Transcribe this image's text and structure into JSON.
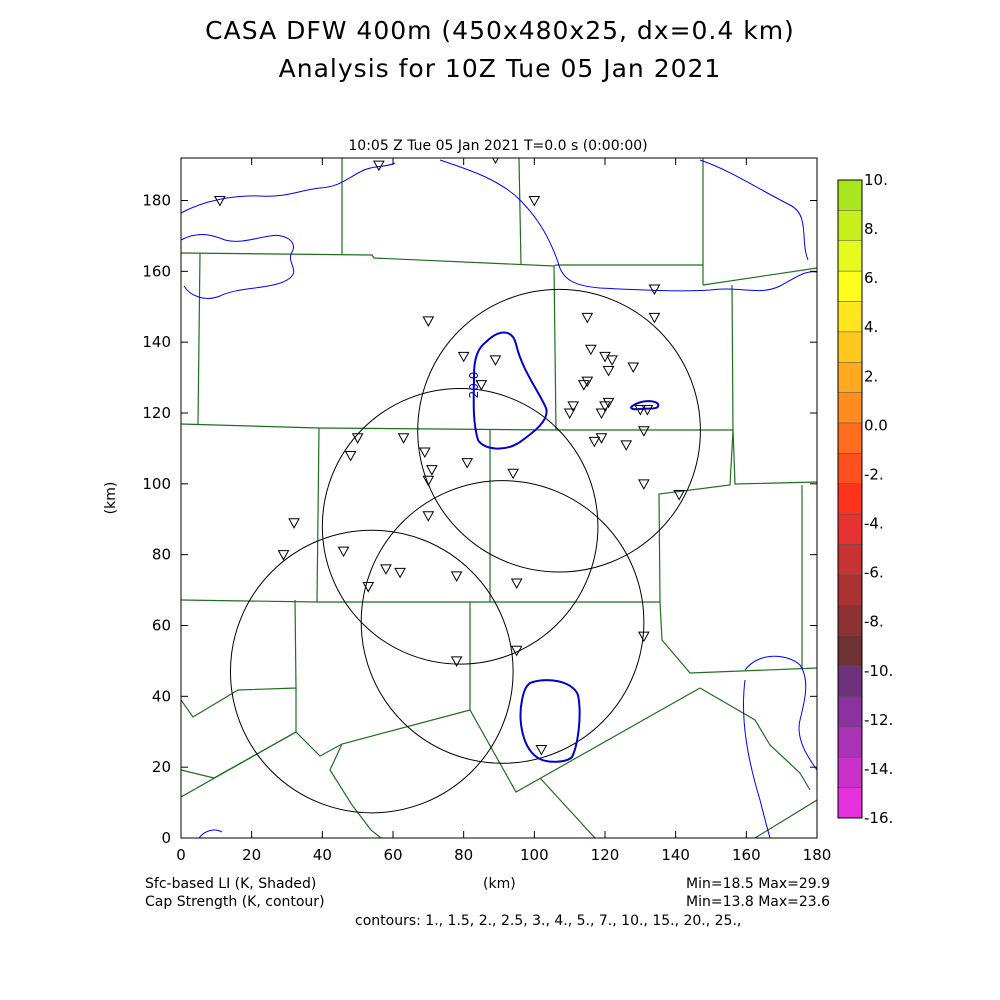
{
  "header": {
    "title_line1": "CASA DFW 400m (450x480x25, dx=0.4 km)",
    "title_line2": "Analysis for 10Z Tue 05 Jan 2021",
    "subtitle": "10:05 Z Tue 05 Jan 2021   T=0.0 s (0:00:00)"
  },
  "axes": {
    "xlabel": "(km)",
    "ylabel": "(km)",
    "xlim": [
      0,
      180
    ],
    "ylim": [
      0,
      192
    ],
    "xticks": [
      0,
      20,
      40,
      60,
      80,
      100,
      120,
      140,
      160,
      180
    ],
    "yticks": [
      0,
      20,
      40,
      60,
      80,
      100,
      120,
      140,
      160,
      180
    ]
  },
  "colorbar": {
    "labels": [
      "10.",
      "8.",
      "6.",
      "4.",
      "2.",
      "0.0",
      "-2.",
      "-4.",
      "-6.",
      "-8.",
      "-10.",
      "-12.",
      "-14.",
      "-16."
    ],
    "colors": [
      "#a8e61e",
      "#c8f01e",
      "#e6fa1e",
      "#ffff1e",
      "#ffe61e",
      "#ffc81e",
      "#ffaa1e",
      "#ff8c1e",
      "#ff6e1e",
      "#ff501e",
      "#ff321e",
      "#e63232",
      "#c83232",
      "#aa3232",
      "#8c3232",
      "#6e3232",
      "#6e327d",
      "#8c32a0",
      "#aa32b4",
      "#c832c8",
      "#e632dc"
    ]
  },
  "footer": {
    "left1": "Sfc-based LI (K, Shaded)",
    "left2": "Cap Strength (K, contour)",
    "center": "(km)",
    "right1": "Min=18.5 Max=29.9",
    "right2": "Min=13.8 Max=23.6",
    "contours": "contours: 1., 1.5, 2., 2.5, 3., 4., 5., 7., 10., 15., 20., 25.,"
  },
  "map": {
    "contour_label": "20.0",
    "radar_rings": [
      {
        "cx": 107,
        "cy": 115,
        "r": 40
      },
      {
        "cx": 79,
        "cy": 88,
        "r": 39
      },
      {
        "cx": 91,
        "cy": 61,
        "r": 40
      },
      {
        "cx": 54,
        "cy": 47,
        "r": 40
      }
    ],
    "stations": [
      [
        11,
        180
      ],
      [
        56,
        190
      ],
      [
        89,
        192
      ],
      [
        100,
        180
      ],
      [
        70,
        146
      ],
      [
        80,
        136
      ],
      [
        85,
        128
      ],
      [
        89,
        135
      ],
      [
        115,
        147
      ],
      [
        116,
        138
      ],
      [
        120,
        136
      ],
      [
        122,
        135
      ],
      [
        121,
        132
      ],
      [
        115,
        129
      ],
      [
        114,
        128
      ],
      [
        128,
        133
      ],
      [
        134,
        155
      ],
      [
        134,
        147
      ],
      [
        111,
        122
      ],
      [
        110,
        120
      ],
      [
        119,
        120
      ],
      [
        120,
        122
      ],
      [
        121,
        123
      ],
      [
        130,
        121
      ],
      [
        132,
        121
      ],
      [
        117,
        112
      ],
      [
        119,
        113
      ],
      [
        126,
        111
      ],
      [
        131,
        115
      ],
      [
        131,
        100
      ],
      [
        141,
        97
      ],
      [
        50,
        113
      ],
      [
        48,
        108
      ],
      [
        63,
        113
      ],
      [
        69,
        109
      ],
      [
        71,
        104
      ],
      [
        70,
        101
      ],
      [
        81,
        106
      ],
      [
        94,
        103
      ],
      [
        70,
        91
      ],
      [
        32,
        89
      ],
      [
        29,
        80
      ],
      [
        46,
        81
      ],
      [
        58,
        76
      ],
      [
        62,
        75
      ],
      [
        53,
        71
      ],
      [
        78,
        74
      ],
      [
        95,
        72
      ],
      [
        131,
        57
      ],
      [
        95,
        53
      ],
      [
        78,
        50
      ],
      [
        102,
        25
      ]
    ]
  }
}
